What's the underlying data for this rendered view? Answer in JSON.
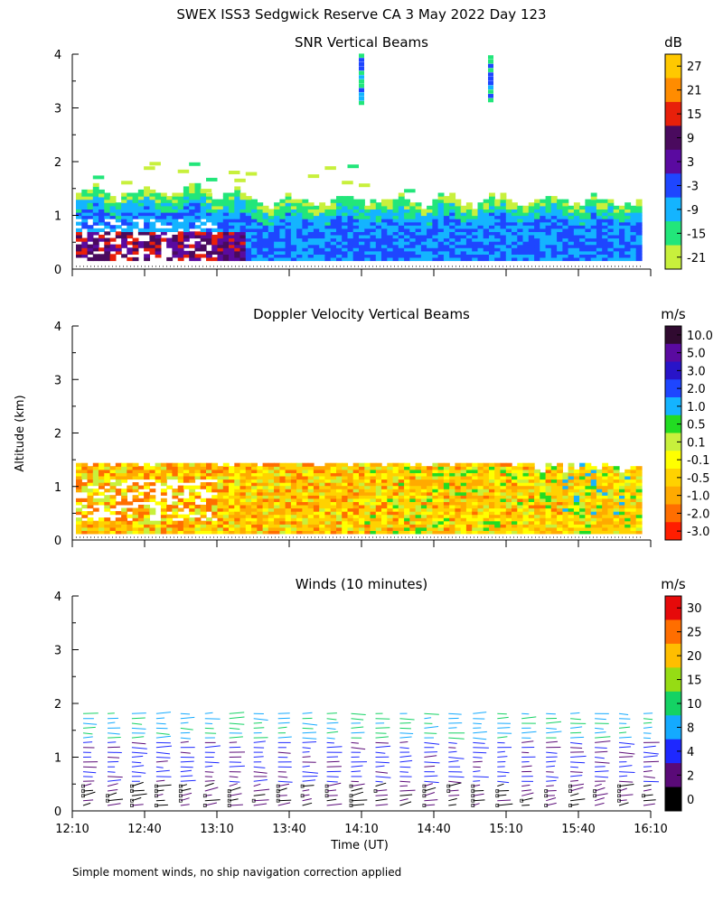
{
  "figure": {
    "title": "SWEX ISS3 Sedgwick Reserve CA   3 May 2022 Day 123",
    "ylabel": "Altitude (km)",
    "xlabel": "Time (UT)",
    "footnote": "Simple moment winds, no ship navigation correction applied"
  },
  "chart_data": [
    {
      "type": "heatmap",
      "title": "SNR Vertical Beams",
      "x_range": [
        "12:10",
        "16:10"
      ],
      "ylim": [
        0,
        4
      ],
      "yticks": [
        "0",
        "1",
        "2",
        "3",
        "4"
      ],
      "colorbar": {
        "unit": "dB",
        "labels": [
          "27",
          "21",
          "15",
          "9",
          "3",
          "-3",
          "-9",
          "-15",
          "-21"
        ],
        "colors": [
          "#ffc800",
          "#ff8c00",
          "#e8200a",
          "#4a0a5e",
          "#5a0aa0",
          "#1e46ff",
          "#14b4ff",
          "#22e67a",
          "#c8f03c"
        ]
      },
      "description_layers": [
        {
          "name": "boundary layer echo",
          "altitude_km": [
            0.15,
            1.4
          ],
          "snr_db": [
            -9,
            3
          ]
        },
        {
          "name": "strong near-surface echo",
          "altitude_km": [
            0.15,
            0.7
          ],
          "snr_db": [
            3,
            15
          ]
        }
      ]
    },
    {
      "type": "heatmap",
      "title": "Doppler Velocity Vertical Beams",
      "x_range": [
        "12:10",
        "16:10"
      ],
      "ylim": [
        0,
        4
      ],
      "yticks": [
        "0",
        "1",
        "2",
        "3",
        "4"
      ],
      "colorbar": {
        "unit": "m/s",
        "labels": [
          "10.0",
          "5.0",
          "3.0",
          "2.0",
          "1.0",
          "0.5",
          "0.1",
          "-0.1",
          "-0.5",
          "-1.0",
          "-2.0",
          "-3.0"
        ],
        "colors": [
          "#300a30",
          "#5a0aa0",
          "#2814c8",
          "#1e46ff",
          "#14b4ff",
          "#22dc22",
          "#c8f03c",
          "#ffff00",
          "#ffd200",
          "#ffaa00",
          "#ff6e00",
          "#ff1e00"
        ]
      }
    },
    {
      "type": "wind-barbs",
      "title": "Winds (10 minutes)",
      "x_range": [
        "12:10",
        "16:10"
      ],
      "ylim": [
        0,
        4
      ],
      "yticks": [
        "0",
        "1",
        "2",
        "3",
        "4"
      ],
      "colorbar": {
        "unit": "m/s",
        "labels": [
          "30",
          "25",
          "20",
          "15",
          "10",
          "8",
          "4",
          "2",
          "0"
        ],
        "colors": [
          "#e60a0a",
          "#ff6e00",
          "#ffbe00",
          "#96dc14",
          "#14d264",
          "#14aaff",
          "#1e28ff",
          "#5a0a78",
          "#000000"
        ]
      }
    }
  ],
  "xticks": [
    "12:10",
    "12:40",
    "13:10",
    "13:40",
    "14:10",
    "14:40",
    "15:10",
    "15:40",
    "16:10"
  ]
}
